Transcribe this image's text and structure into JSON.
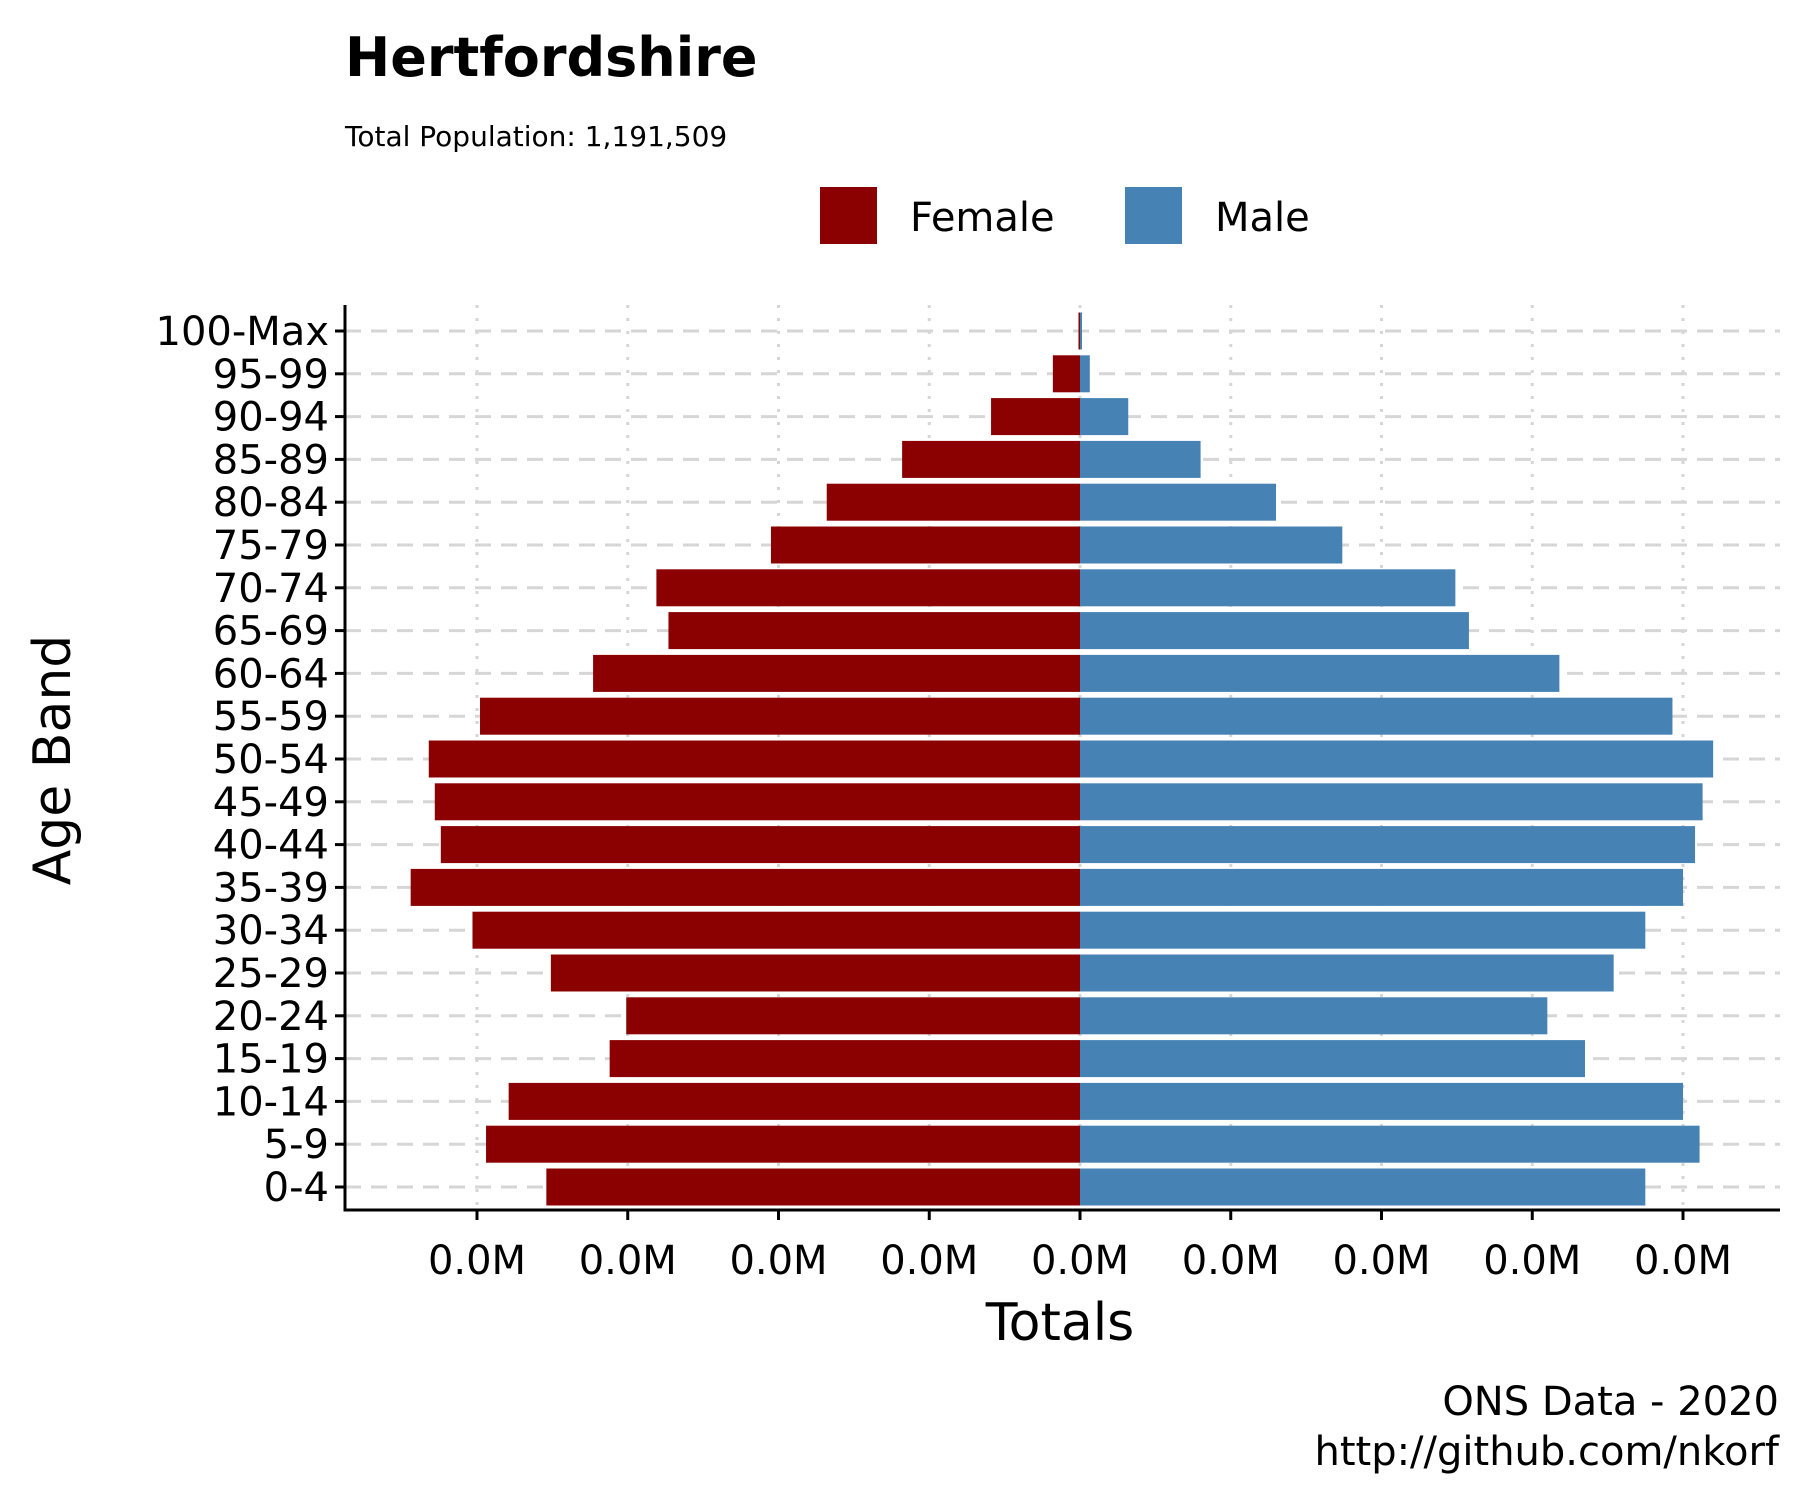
{
  "chart_data": {
    "type": "bar",
    "orientation": "horizontal",
    "title": "Hertfordshire",
    "subtitle": "Total Population:  1,191,509",
    "xlabel": "Totals",
    "ylabel": "Age Band",
    "caption_line1": "ONS Data - 2020",
    "caption_line2": "http://github.com/nkorf",
    "xlim": [
      -45000,
      46000
    ],
    "xticks": [
      -40000,
      -30000,
      -20000,
      -10000,
      0,
      10000,
      20000,
      30000,
      40000
    ],
    "xtick_labels": [
      "0.0M",
      "0.0M",
      "0.0M",
      "0.0M",
      "0.0M",
      "0.0M",
      "0.0M",
      "0.0M",
      "0.0M"
    ],
    "legend_position": "top",
    "grid": true,
    "categories": [
      "0-4",
      "5-9",
      "10-14",
      "15-19",
      "20-24",
      "25-29",
      "30-34",
      "35-39",
      "40-44",
      "45-49",
      "50-54",
      "55-59",
      "60-64",
      "65-69",
      "70-74",
      "75-79",
      "80-84",
      "85-89",
      "90-94",
      "95-99",
      "100-Max"
    ],
    "series": [
      {
        "name": "Female",
        "color": "#8b0000",
        "direction": "negative",
        "values": [
          35400,
          39400,
          37900,
          31200,
          30100,
          35100,
          40300,
          44400,
          42400,
          42800,
          43200,
          39800,
          32300,
          27300,
          28100,
          20500,
          16800,
          11800,
          5900,
          1800,
          100
        ]
      },
      {
        "name": "Male",
        "color": "#4682b4",
        "direction": "positive",
        "values": [
          37500,
          41100,
          40000,
          33500,
          31000,
          35400,
          37500,
          40000,
          40800,
          41300,
          42000,
          39300,
          31800,
          25800,
          24900,
          17400,
          13000,
          8000,
          3200,
          650,
          30
        ]
      }
    ]
  }
}
